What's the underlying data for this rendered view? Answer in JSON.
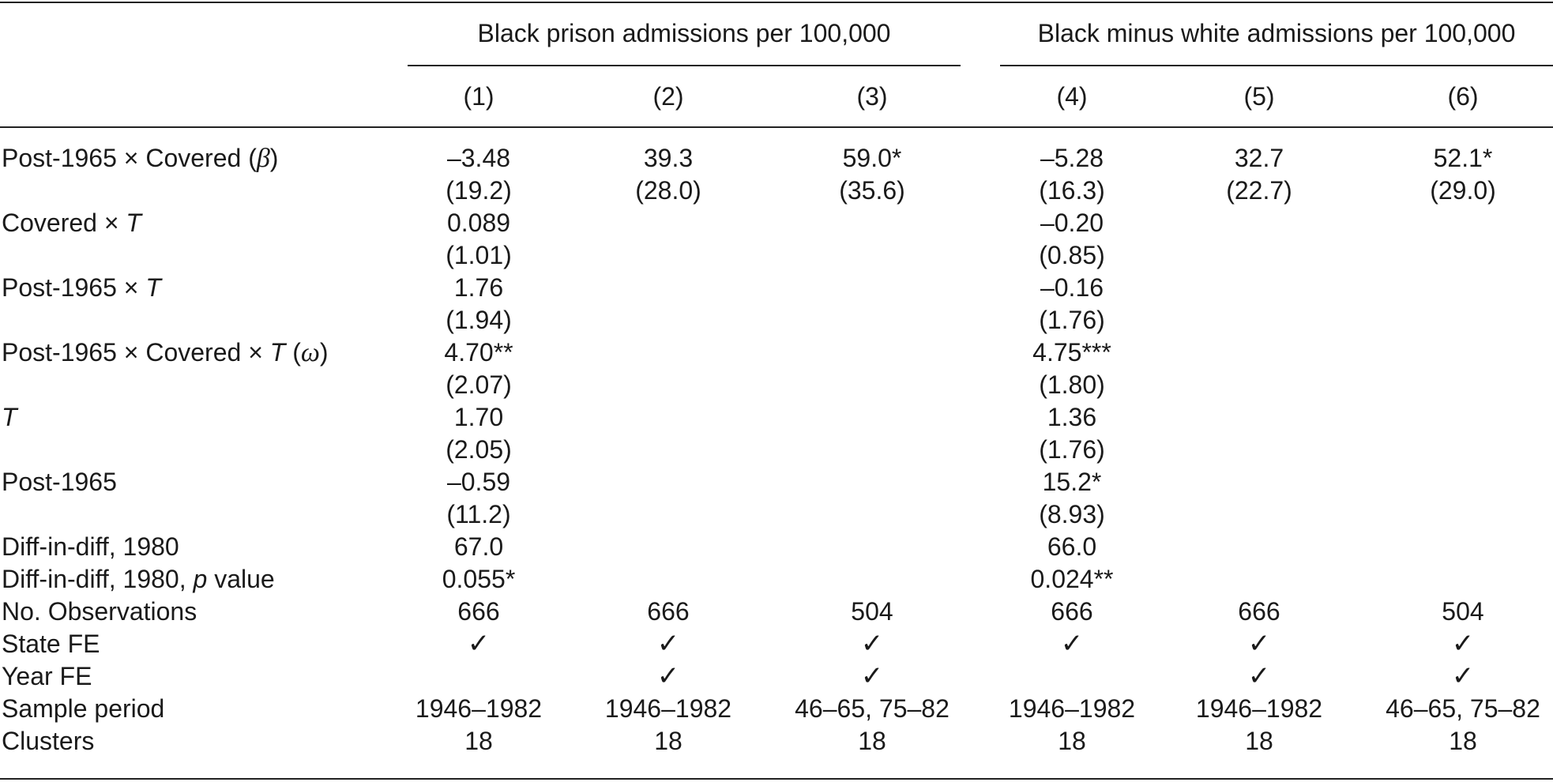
{
  "group_headers": [
    "Black prison admissions per 100,000",
    "Black minus white admissions per 100,000"
  ],
  "column_numbers": [
    "(1)",
    "(2)",
    "(3)",
    "(4)",
    "(5)",
    "(6)"
  ],
  "row_labels": {
    "post_covered": {
      "a": "Post-1965 × Covered (",
      "sym": "β",
      "b": ")"
    },
    "covered_t": {
      "a": "Covered × ",
      "t": "T"
    },
    "post_t": {
      "a": "Post-1965 × ",
      "t": "T"
    },
    "post_covered_t": {
      "a": "Post-1965 × Covered × ",
      "t": "T",
      "b": " (",
      "sym": "ω",
      "c": ")"
    },
    "t": {
      "t": "T"
    },
    "post1965": "Post-1965",
    "did": "Diff-in-diff, 1980",
    "did_p": {
      "a": "Diff-in-diff, 1980, ",
      "p": "p",
      "b": " value"
    },
    "nobs": "No. Observations",
    "state_fe": "State FE",
    "year_fe": "Year FE",
    "sample": "Sample period",
    "clusters": "Clusters"
  },
  "rows": [
    [
      "–3.48",
      "39.3",
      "59.0*",
      "–5.28",
      "32.7",
      "52.1*"
    ],
    [
      "(19.2)",
      "(28.0)",
      "(35.6)",
      "(16.3)",
      "(22.7)",
      "(29.0)"
    ],
    [
      "0.089",
      "",
      "",
      "–0.20",
      "",
      ""
    ],
    [
      "(1.01)",
      "",
      "",
      "(0.85)",
      "",
      ""
    ],
    [
      "1.76",
      "",
      "",
      "–0.16",
      "",
      ""
    ],
    [
      "(1.94)",
      "",
      "",
      "(1.76)",
      "",
      ""
    ],
    [
      "4.70**",
      "",
      "",
      "4.75***",
      "",
      ""
    ],
    [
      "(2.07)",
      "",
      "",
      "(1.80)",
      "",
      ""
    ],
    [
      "1.70",
      "",
      "",
      "1.36",
      "",
      ""
    ],
    [
      "(2.05)",
      "",
      "",
      "(1.76)",
      "",
      ""
    ],
    [
      "–0.59",
      "",
      "",
      "15.2*",
      "",
      ""
    ],
    [
      "(11.2)",
      "",
      "",
      "(8.93)",
      "",
      ""
    ],
    [
      "67.0",
      "",
      "",
      "66.0",
      "",
      ""
    ],
    [
      "0.055*",
      "",
      "",
      "0.024**",
      "",
      ""
    ],
    [
      "666",
      "666",
      "504",
      "666",
      "666",
      "504"
    ],
    [
      "✓",
      "✓",
      "✓",
      "✓",
      "✓",
      "✓"
    ],
    [
      "",
      "✓",
      "✓",
      "",
      "✓",
      "✓"
    ],
    [
      "1946–1982",
      "1946–1982",
      "46–65, 75–82",
      "1946–1982",
      "1946–1982",
      "46–65, 75–82"
    ],
    [
      "18",
      "18",
      "18",
      "18",
      "18",
      "18"
    ]
  ]
}
